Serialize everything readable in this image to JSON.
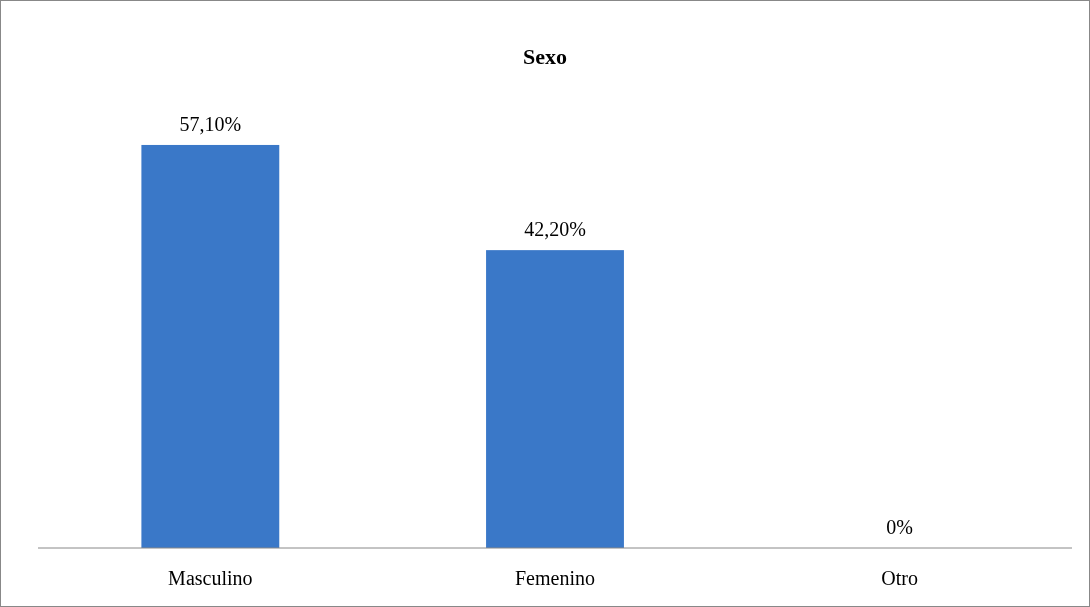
{
  "chart_data": {
    "type": "bar",
    "title": "Sexo",
    "categories": [
      "Masculino",
      "Femenino",
      "Otro"
    ],
    "values": [
      57.1,
      42.2,
      0
    ],
    "value_labels": [
      "57,10%",
      "42,20%",
      "0%"
    ],
    "color": "#3a78c8"
  }
}
